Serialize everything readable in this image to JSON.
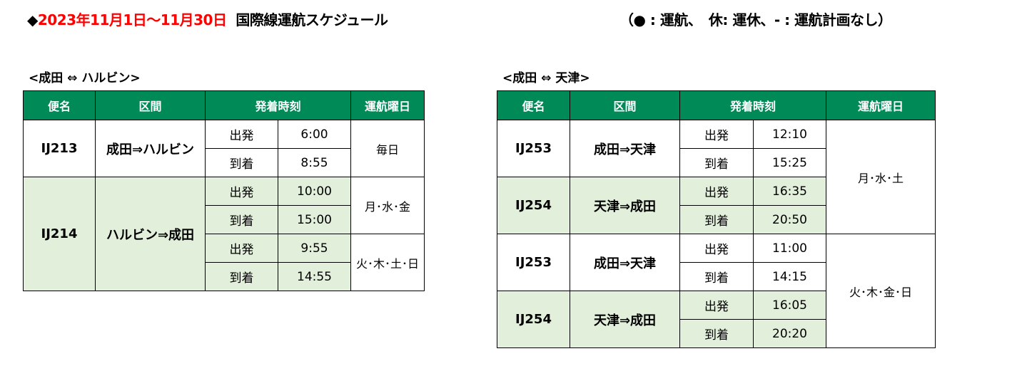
{
  "title": {
    "bullet": "◆",
    "period": "2023年11月1日～11月30日",
    "text": "国際線運航スケジュール"
  },
  "legend": "（● : 運航、　休: 運休、- : 運航計画なし）",
  "colors": {
    "header": "#008a57",
    "shade": "#e2efda",
    "period": "#ff0000"
  },
  "headers": [
    "便名",
    "区間",
    "発着時刻",
    "運航曜日"
  ],
  "tables": [
    {
      "subtitle": "<成田 ⇔ ハルビン>",
      "flights": [
        {
          "flight": "IJ213",
          "route": "成田⇒ハルビン",
          "shaded": false,
          "times": [
            [
              "出発",
              "6:00"
            ],
            [
              "到着",
              "8:55"
            ]
          ]
        },
        {
          "flight": "IJ214",
          "route": "ハルビン⇒成田",
          "shaded": true,
          "times": [
            [
              "出発",
              "10:00"
            ],
            [
              "到着",
              "15:00"
            ],
            [
              "出発",
              "9:55"
            ],
            [
              "到着",
              "14:55"
            ]
          ]
        }
      ],
      "days": [
        {
          "label": "毎日",
          "rows": 2
        },
        {
          "label": "月･水･金",
          "rows": 2
        },
        {
          "label": "火･木･土･日",
          "rows": 2
        }
      ]
    },
    {
      "subtitle": "<成田 ⇔ 天津>",
      "flights": [
        {
          "flight": "IJ253",
          "route": "成田⇒天津",
          "shaded": false,
          "times": [
            [
              "出発",
              "12:10"
            ],
            [
              "到着",
              "15:25"
            ]
          ]
        },
        {
          "flight": "IJ254",
          "route": "天津⇒成田",
          "shaded": true,
          "times": [
            [
              "出発",
              "16:35"
            ],
            [
              "到着",
              "20:50"
            ]
          ]
        },
        {
          "flight": "IJ253",
          "route": "成田⇒天津",
          "shaded": false,
          "times": [
            [
              "出発",
              "11:00"
            ],
            [
              "到着",
              "14:15"
            ]
          ]
        },
        {
          "flight": "IJ254",
          "route": "天津⇒成田",
          "shaded": true,
          "times": [
            [
              "出発",
              "16:05"
            ],
            [
              "到着",
              "20:20"
            ]
          ]
        }
      ],
      "days": [
        {
          "label": "月･水･土",
          "rows": 4
        },
        {
          "label": "火･木･金･日",
          "rows": 4
        }
      ]
    }
  ]
}
